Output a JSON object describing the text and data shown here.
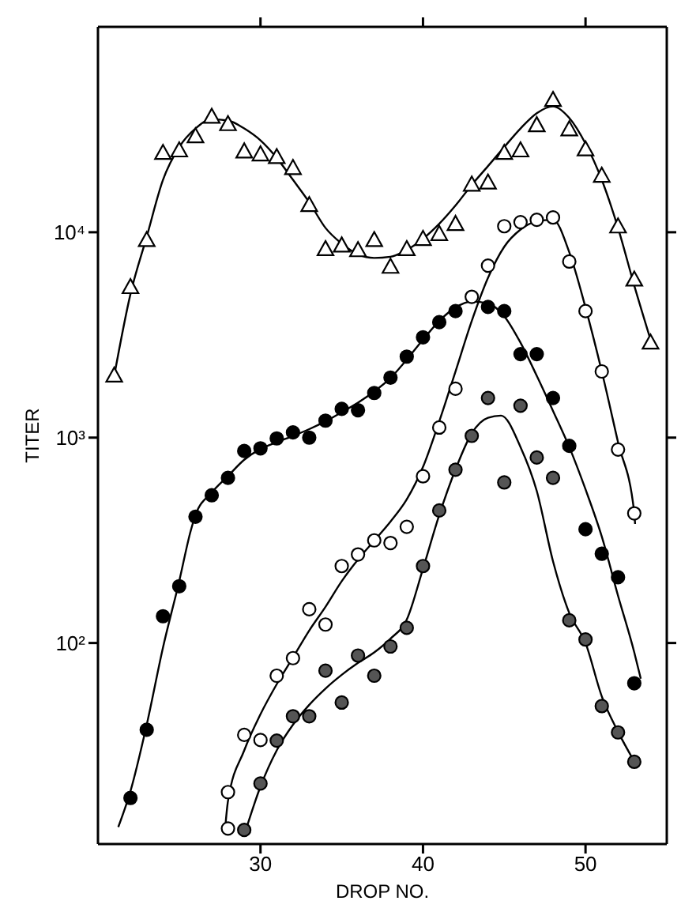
{
  "chart_data": {
    "type": "scatter",
    "xlabel": "DROP NO.",
    "ylabel": "TITER",
    "log": "y",
    "xlim": [
      20,
      55
    ],
    "xticks": [
      30,
      40,
      50
    ],
    "ylim": [
      10.5,
      100000
    ],
    "yticks": [
      {
        "value": 100,
        "label": "10²"
      },
      {
        "value": 1000,
        "label": "10³"
      },
      {
        "value": 10000,
        "label": "10⁴"
      }
    ],
    "grid": false,
    "legend": false,
    "series": [
      {
        "type": "scatter",
        "marker": "triangle",
        "color": "#ffffff",
        "x": [
          21,
          22,
          23,
          24,
          25,
          26,
          27,
          28,
          29,
          30,
          31,
          32,
          33,
          34,
          35,
          36,
          37,
          38,
          39,
          40,
          41,
          42,
          43,
          44,
          45,
          46,
          47,
          48,
          49,
          50,
          51,
          52,
          53,
          54
        ],
        "values": [
          2010,
          5420,
          9190,
          24400,
          25100,
          29400,
          36600,
          33700,
          24800,
          24000,
          23300,
          20600,
          13600,
          8300,
          8640,
          8200,
          9190,
          6810,
          8300,
          9300,
          9830,
          11000,
          17100,
          17500,
          24400,
          25100,
          33300,
          44200,
          31800,
          25400,
          18900,
          10700,
          5900,
          2910
        ]
      },
      {
        "type": "scatter",
        "marker": "circle",
        "color": "#000000",
        "x": [
          22,
          23,
          24,
          25,
          26,
          27,
          28,
          29,
          30,
          31,
          32,
          33,
          34,
          35,
          36,
          37,
          38,
          39,
          40,
          41,
          42,
          44,
          45,
          46,
          47,
          48,
          49,
          50,
          51,
          52,
          53
        ],
        "values": [
          17.6,
          37.8,
          135,
          189,
          412,
          524,
          637,
          861,
          887,
          991,
          1060,
          1000,
          1210,
          1380,
          1360,
          1650,
          1960,
          2480,
          3080,
          3650,
          4130,
          4330,
          4130,
          2550,
          2550,
          1560,
          912,
          358,
          272,
          209,
          63.7
        ]
      },
      {
        "type": "scatter",
        "marker": "circle",
        "color": "#ffffff",
        "x": [
          28,
          28,
          29,
          30,
          31,
          32,
          33,
          34,
          35,
          36,
          37,
          38,
          39,
          40,
          41,
          42,
          43,
          44,
          45,
          46,
          47,
          48,
          49,
          50,
          51,
          52,
          53
        ],
        "values": [
          12.5,
          18.8,
          35.7,
          33.7,
          69.3,
          84.4,
          146,
          123,
          237,
          270,
          316,
          307,
          368,
          648,
          1120,
          1730,
          4850,
          6880,
          10700,
          11200,
          11500,
          11800,
          7200,
          4130,
          2100,
          875,
          428
        ]
      },
      {
        "type": "scatter",
        "marker": "circle",
        "color": "#555555",
        "x": [
          29,
          30,
          31,
          32,
          33,
          34,
          35,
          36,
          37,
          38,
          39,
          40,
          41,
          42,
          43,
          44,
          45,
          46,
          47,
          48,
          49,
          50,
          51,
          52,
          53
        ],
        "values": [
          12.3,
          20.7,
          33.5,
          44,
          44,
          73.3,
          51.3,
          86.9,
          69.3,
          96.2,
          118.6,
          237,
          442,
          698,
          1020,
          1560,
          605,
          1430,
          800,
          637,
          129,
          104,
          49.3,
          36.7,
          26.4
        ]
      },
      {
        "type": "line",
        "marker": "none",
        "color": "#000000",
        "x": [
          21,
          22,
          23,
          24,
          25,
          26,
          27,
          28,
          29,
          30,
          31,
          32,
          33,
          34,
          35,
          36,
          37,
          38,
          39,
          40,
          41,
          42,
          43,
          44,
          45,
          46,
          47,
          48,
          49,
          50,
          51,
          52,
          53,
          54
        ],
        "values": [
          2000,
          5000,
          9500,
          18000,
          26000,
          32000,
          35500,
          35000,
          32000,
          28000,
          23000,
          18000,
          14000,
          10500,
          8800,
          7800,
          7500,
          7600,
          8200,
          9300,
          11000,
          13500,
          17000,
          21000,
          26000,
          32000,
          38000,
          41000,
          36000,
          27000,
          18000,
          10500,
          5500,
          3000
        ]
      },
      {
        "type": "line",
        "marker": "none",
        "color": "#000000",
        "x": [
          21.25,
          22,
          23,
          24,
          25,
          25.7,
          26,
          27,
          28,
          29,
          30,
          31,
          32,
          33,
          34,
          35,
          36,
          37,
          38,
          39,
          40,
          41,
          42,
          43,
          44,
          45,
          46,
          47,
          48,
          49,
          50,
          51,
          52,
          53,
          53.4
        ],
        "values": [
          12.7,
          19,
          40,
          95,
          200,
          350,
          420,
          540,
          650,
          780,
          880,
          950,
          1020,
          1100,
          1200,
          1330,
          1480,
          1680,
          1950,
          2400,
          3000,
          3700,
          4300,
          4600,
          4500,
          3900,
          2900,
          2000,
          1350,
          900,
          560,
          330,
          170,
          90,
          67
        ]
      },
      {
        "type": "line",
        "marker": "none",
        "color": "#000000",
        "x": [
          27.8,
          28,
          29,
          30,
          31,
          32,
          33,
          34,
          35,
          36,
          37,
          38,
          39,
          40,
          41,
          42,
          43,
          44,
          45,
          46,
          47,
          48,
          49,
          50,
          51,
          52,
          53,
          53.05
        ],
        "values": [
          11.8,
          17,
          30,
          45,
          63,
          85,
          115,
          150,
          200,
          255,
          315,
          390,
          500,
          720,
          1200,
          2100,
          3700,
          6000,
          8500,
          10300,
          11300,
          11500,
          8000,
          4300,
          2100,
          950,
          430,
          380
        ]
      },
      {
        "type": "line",
        "marker": "none",
        "color": "#000000",
        "x": [
          29.1,
          30,
          31,
          32,
          33,
          34,
          35,
          36,
          37,
          38,
          39,
          40,
          41,
          42,
          43,
          44,
          44.8,
          46,
          47,
          48,
          49,
          50,
          51,
          52,
          53
        ],
        "values": [
          12.3,
          20,
          30,
          40,
          50,
          60,
          70,
          80,
          90,
          105,
          130,
          230,
          420,
          700,
          1050,
          1250,
          1280,
          900,
          550,
          250,
          140,
          100,
          55,
          37,
          26.5
        ]
      }
    ]
  }
}
